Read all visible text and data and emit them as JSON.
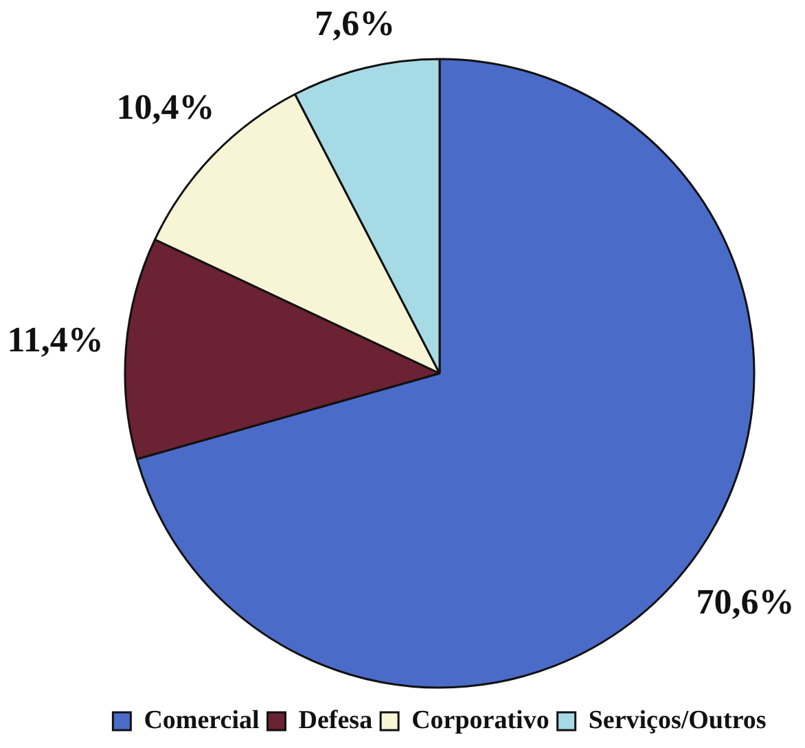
{
  "chart_data": {
    "type": "pie",
    "categories": [
      "Comercial",
      "Defesa",
      "Corporativo",
      "Serviços/Outros"
    ],
    "values": [
      70.6,
      11.4,
      10.4,
      7.6
    ],
    "colors": [
      "#4a6bc8",
      "#6b2232",
      "#f7f5d6",
      "#a6dbe5"
    ],
    "value_labels": [
      "70,6%",
      "11,4%",
      "10,4%",
      "7,6%"
    ],
    "legend": "bottom"
  }
}
